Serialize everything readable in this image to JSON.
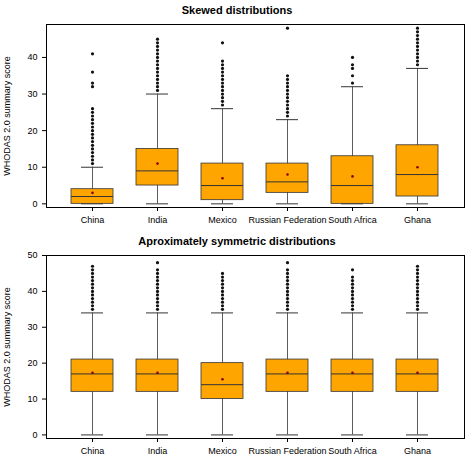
{
  "chart_data": [
    {
      "type": "box",
      "title": "Skewed distributions",
      "y_label": "WHODAS 2.0 summary score",
      "categories": [
        "China",
        "India",
        "Mexico",
        "Russian Federation",
        "South Africa",
        "Ghana"
      ],
      "whisker_low": [
        0,
        0,
        0,
        0,
        0,
        0
      ],
      "q1": [
        0,
        5,
        1,
        3,
        0,
        2
      ],
      "median": [
        2,
        9,
        5,
        6,
        5,
        8
      ],
      "q3": [
        4,
        15,
        11,
        11,
        13,
        16
      ],
      "whisker_high": [
        10,
        30,
        26,
        23,
        32,
        37
      ],
      "mean": [
        3,
        11,
        7,
        8,
        7.5,
        10
      ],
      "outliers": [
        [
          11,
          12,
          13,
          14,
          15,
          16,
          17,
          18,
          19,
          20,
          21,
          22,
          23,
          24,
          25,
          26,
          32,
          33,
          36,
          41
        ],
        [
          31,
          32,
          33,
          34,
          35,
          36,
          37,
          38,
          39,
          40,
          41,
          42,
          43,
          44,
          45
        ],
        [
          27,
          28,
          29,
          30,
          31,
          32,
          33,
          34,
          35,
          36,
          37,
          38,
          39,
          44
        ],
        [
          24,
          25,
          26,
          27,
          28,
          29,
          30,
          31,
          32,
          33,
          34,
          35,
          48
        ],
        [
          33,
          35,
          37,
          38,
          40
        ],
        [
          38,
          39,
          40,
          41,
          42,
          43,
          44,
          45,
          46,
          47,
          48
        ]
      ],
      "color": "#ffa500",
      "ylim": [
        -1,
        49
      ],
      "yticks": [
        0,
        10,
        20,
        30,
        40
      ]
    },
    {
      "type": "box",
      "title": "Aproximately symmetric distributions",
      "y_label": "WHODAS 2.0 summary score",
      "categories": [
        "China",
        "India",
        "Mexico",
        "Russian Federation",
        "South Africa",
        "Ghana"
      ],
      "whisker_low": [
        0,
        0,
        0,
        0,
        0,
        0
      ],
      "q1": [
        12,
        12,
        10,
        12,
        12,
        12
      ],
      "median": [
        17,
        17,
        14,
        17,
        17,
        17
      ],
      "q3": [
        21,
        21,
        20,
        21,
        21,
        21
      ],
      "whisker_high": [
        34,
        34,
        34,
        34,
        34,
        34
      ],
      "mean": [
        17.3,
        17.3,
        15.5,
        17.3,
        17.3,
        17.3
      ],
      "outliers": [
        [
          35,
          36,
          37,
          38,
          39,
          40,
          41,
          42,
          43,
          44,
          45,
          46,
          47
        ],
        [
          35,
          36,
          37,
          38,
          39,
          40,
          41,
          42,
          43,
          44,
          45,
          46,
          48
        ],
        [
          35,
          36,
          37,
          38,
          39,
          40,
          41,
          42,
          43,
          44,
          45
        ],
        [
          35,
          36,
          37,
          38,
          39,
          40,
          41,
          42,
          43,
          44,
          45,
          46,
          48
        ],
        [
          35,
          36,
          37,
          38,
          39,
          40,
          41,
          42,
          43,
          44,
          46
        ],
        [
          35,
          36,
          37,
          38,
          39,
          40,
          41,
          42,
          43,
          44,
          45,
          46,
          47
        ]
      ],
      "color": "#ffa500",
      "ylim": [
        -1,
        50
      ],
      "yticks": [
        0,
        10,
        20,
        30,
        40,
        50
      ]
    }
  ]
}
